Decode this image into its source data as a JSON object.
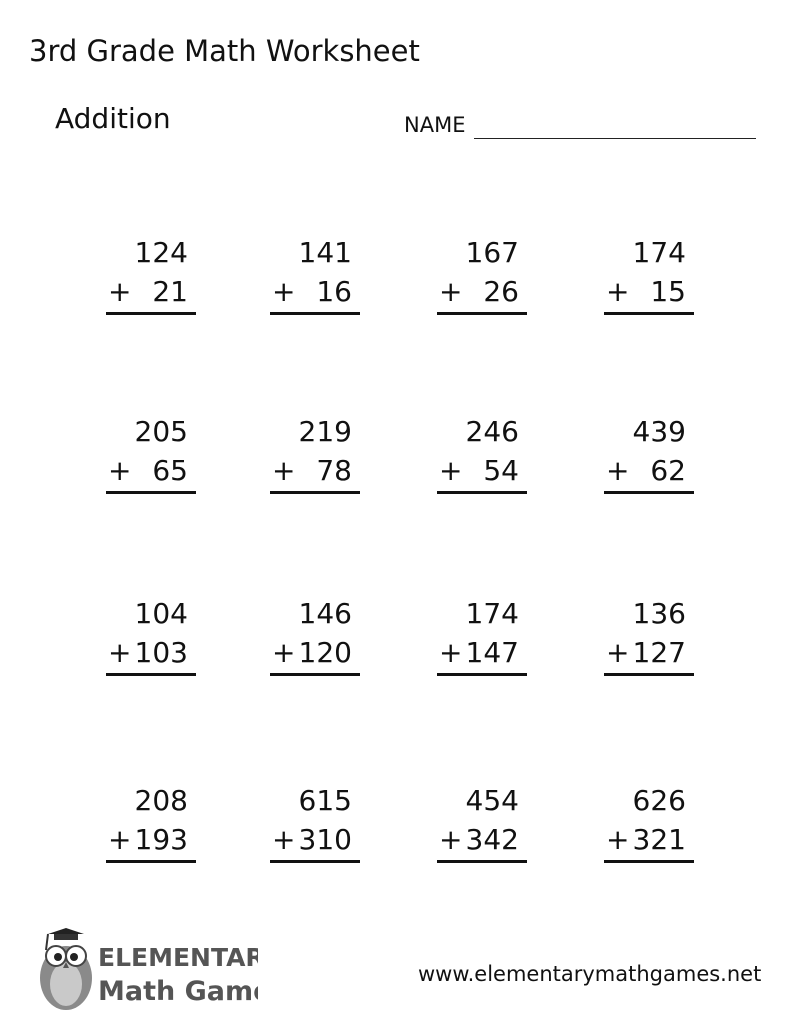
{
  "header": {
    "title": "3rd Grade Math Worksheet",
    "subtitle": "Addition",
    "name_label": "NAME"
  },
  "problems": [
    [
      {
        "top": "124",
        "addend": "21"
      },
      {
        "top": "141",
        "addend": "16"
      },
      {
        "top": "167",
        "addend": "26"
      },
      {
        "top": "174",
        "addend": "15"
      }
    ],
    [
      {
        "top": "205",
        "addend": "65"
      },
      {
        "top": "219",
        "addend": "78"
      },
      {
        "top": "246",
        "addend": "54"
      },
      {
        "top": "439",
        "addend": "62"
      }
    ],
    [
      {
        "top": "104",
        "addend": "103"
      },
      {
        "top": "146",
        "addend": "120"
      },
      {
        "top": "174",
        "addend": "147"
      },
      {
        "top": "136",
        "addend": "127"
      }
    ],
    [
      {
        "top": "208",
        "addend": "193"
      },
      {
        "top": "615",
        "addend": "310"
      },
      {
        "top": "454",
        "addend": "342"
      },
      {
        "top": "626",
        "addend": "321"
      }
    ]
  ],
  "operator": "+",
  "footer": {
    "logo_text": [
      "ELEMENTARY",
      "MATH GAMES"
    ],
    "url": "www.elementarymathgames.net"
  }
}
